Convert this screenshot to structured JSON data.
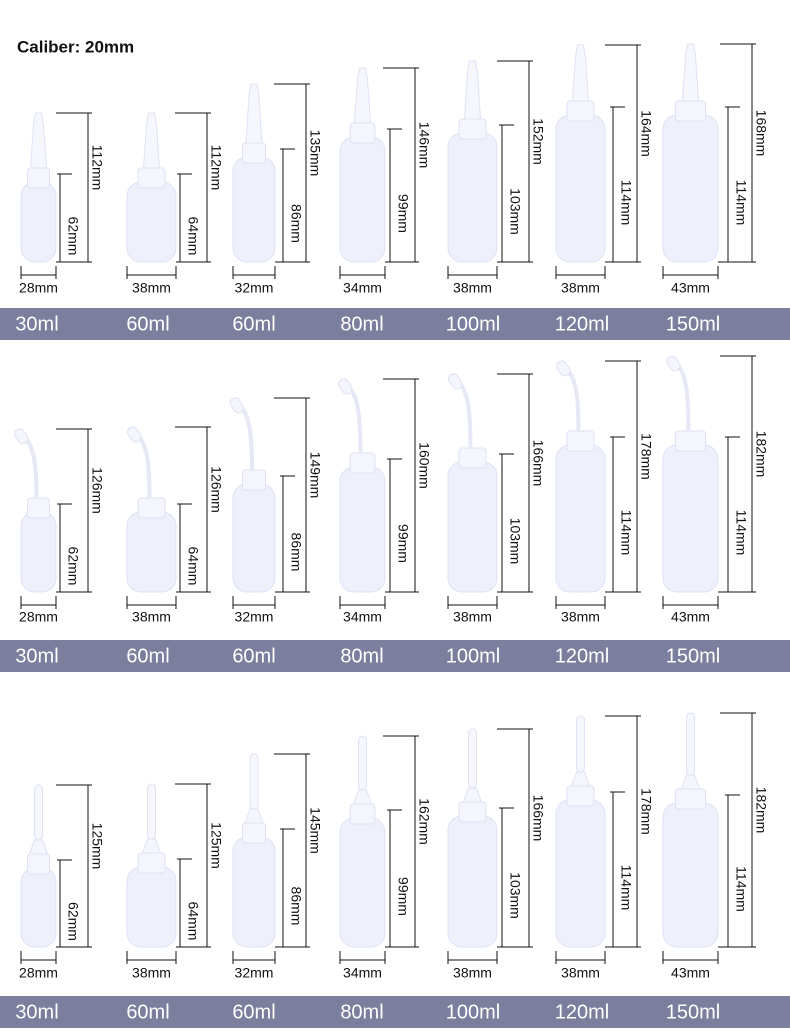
{
  "title": "Caliber: 20mm",
  "rows": [
    {
      "items": [
        {
          "total": "112mm",
          "body": "62mm",
          "width": "28mm",
          "volume": "30ml"
        },
        {
          "total": "112mm",
          "body": "64mm",
          "width": "38mm",
          "volume": "60ml"
        },
        {
          "total": "135mm",
          "body": "86mm",
          "width": "32mm",
          "volume": "60ml"
        },
        {
          "total": "146mm",
          "body": "99mm",
          "width": "34mm",
          "volume": "80ml"
        },
        {
          "total": "152mm",
          "body": "103mm",
          "width": "38mm",
          "volume": "100ml"
        },
        {
          "total": "164mm",
          "body": "114mm",
          "width": "38mm",
          "volume": "120ml"
        },
        {
          "total": "168mm",
          "body": "114mm",
          "width": "43mm",
          "volume": "150ml"
        }
      ]
    },
    {
      "items": [
        {
          "total": "126mm",
          "body": "62mm",
          "width": "28mm",
          "volume": "30ml"
        },
        {
          "total": "126mm",
          "body": "64mm",
          "width": "38mm",
          "volume": "60ml"
        },
        {
          "total": "149mm",
          "body": "86mm",
          "width": "32mm",
          "volume": "60ml"
        },
        {
          "total": "160mm",
          "body": "99mm",
          "width": "34mm",
          "volume": "80ml"
        },
        {
          "total": "166mm",
          "body": "103mm",
          "width": "38mm",
          "volume": "100ml"
        },
        {
          "total": "178mm",
          "body": "114mm",
          "width": "38mm",
          "volume": "120ml"
        },
        {
          "total": "182mm",
          "body": "114mm",
          "width": "43mm",
          "volume": "150ml"
        }
      ]
    },
    {
      "items": [
        {
          "total": "125mm",
          "body": "62mm",
          "width": "28mm",
          "volume": "30ml"
        },
        {
          "total": "125mm",
          "body": "64mm",
          "width": "38mm",
          "volume": "60ml"
        },
        {
          "total": "145mm",
          "body": "86mm",
          "width": "32mm",
          "volume": "60ml"
        },
        {
          "total": "162mm",
          "body": "99mm",
          "width": "34mm",
          "volume": "80ml"
        },
        {
          "total": "166mm",
          "body": "103mm",
          "width": "38mm",
          "volume": "100ml"
        },
        {
          "total": "178mm",
          "body": "114mm",
          "width": "38mm",
          "volume": "120ml"
        },
        {
          "total": "182mm",
          "body": "114mm",
          "width": "43mm",
          "volume": "150ml"
        }
      ]
    }
  ]
}
